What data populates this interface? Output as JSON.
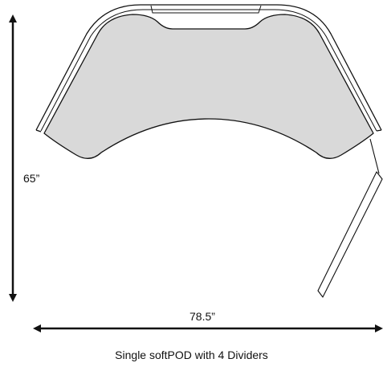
{
  "diagram": {
    "height_dimension": "65”",
    "width_dimension": "78.5”",
    "caption": "Single softPOD with 4 Dividers",
    "colors": {
      "desk_fill": "#d9d9d9",
      "divider_fill": "#ffffff",
      "line": "#111111"
    }
  }
}
